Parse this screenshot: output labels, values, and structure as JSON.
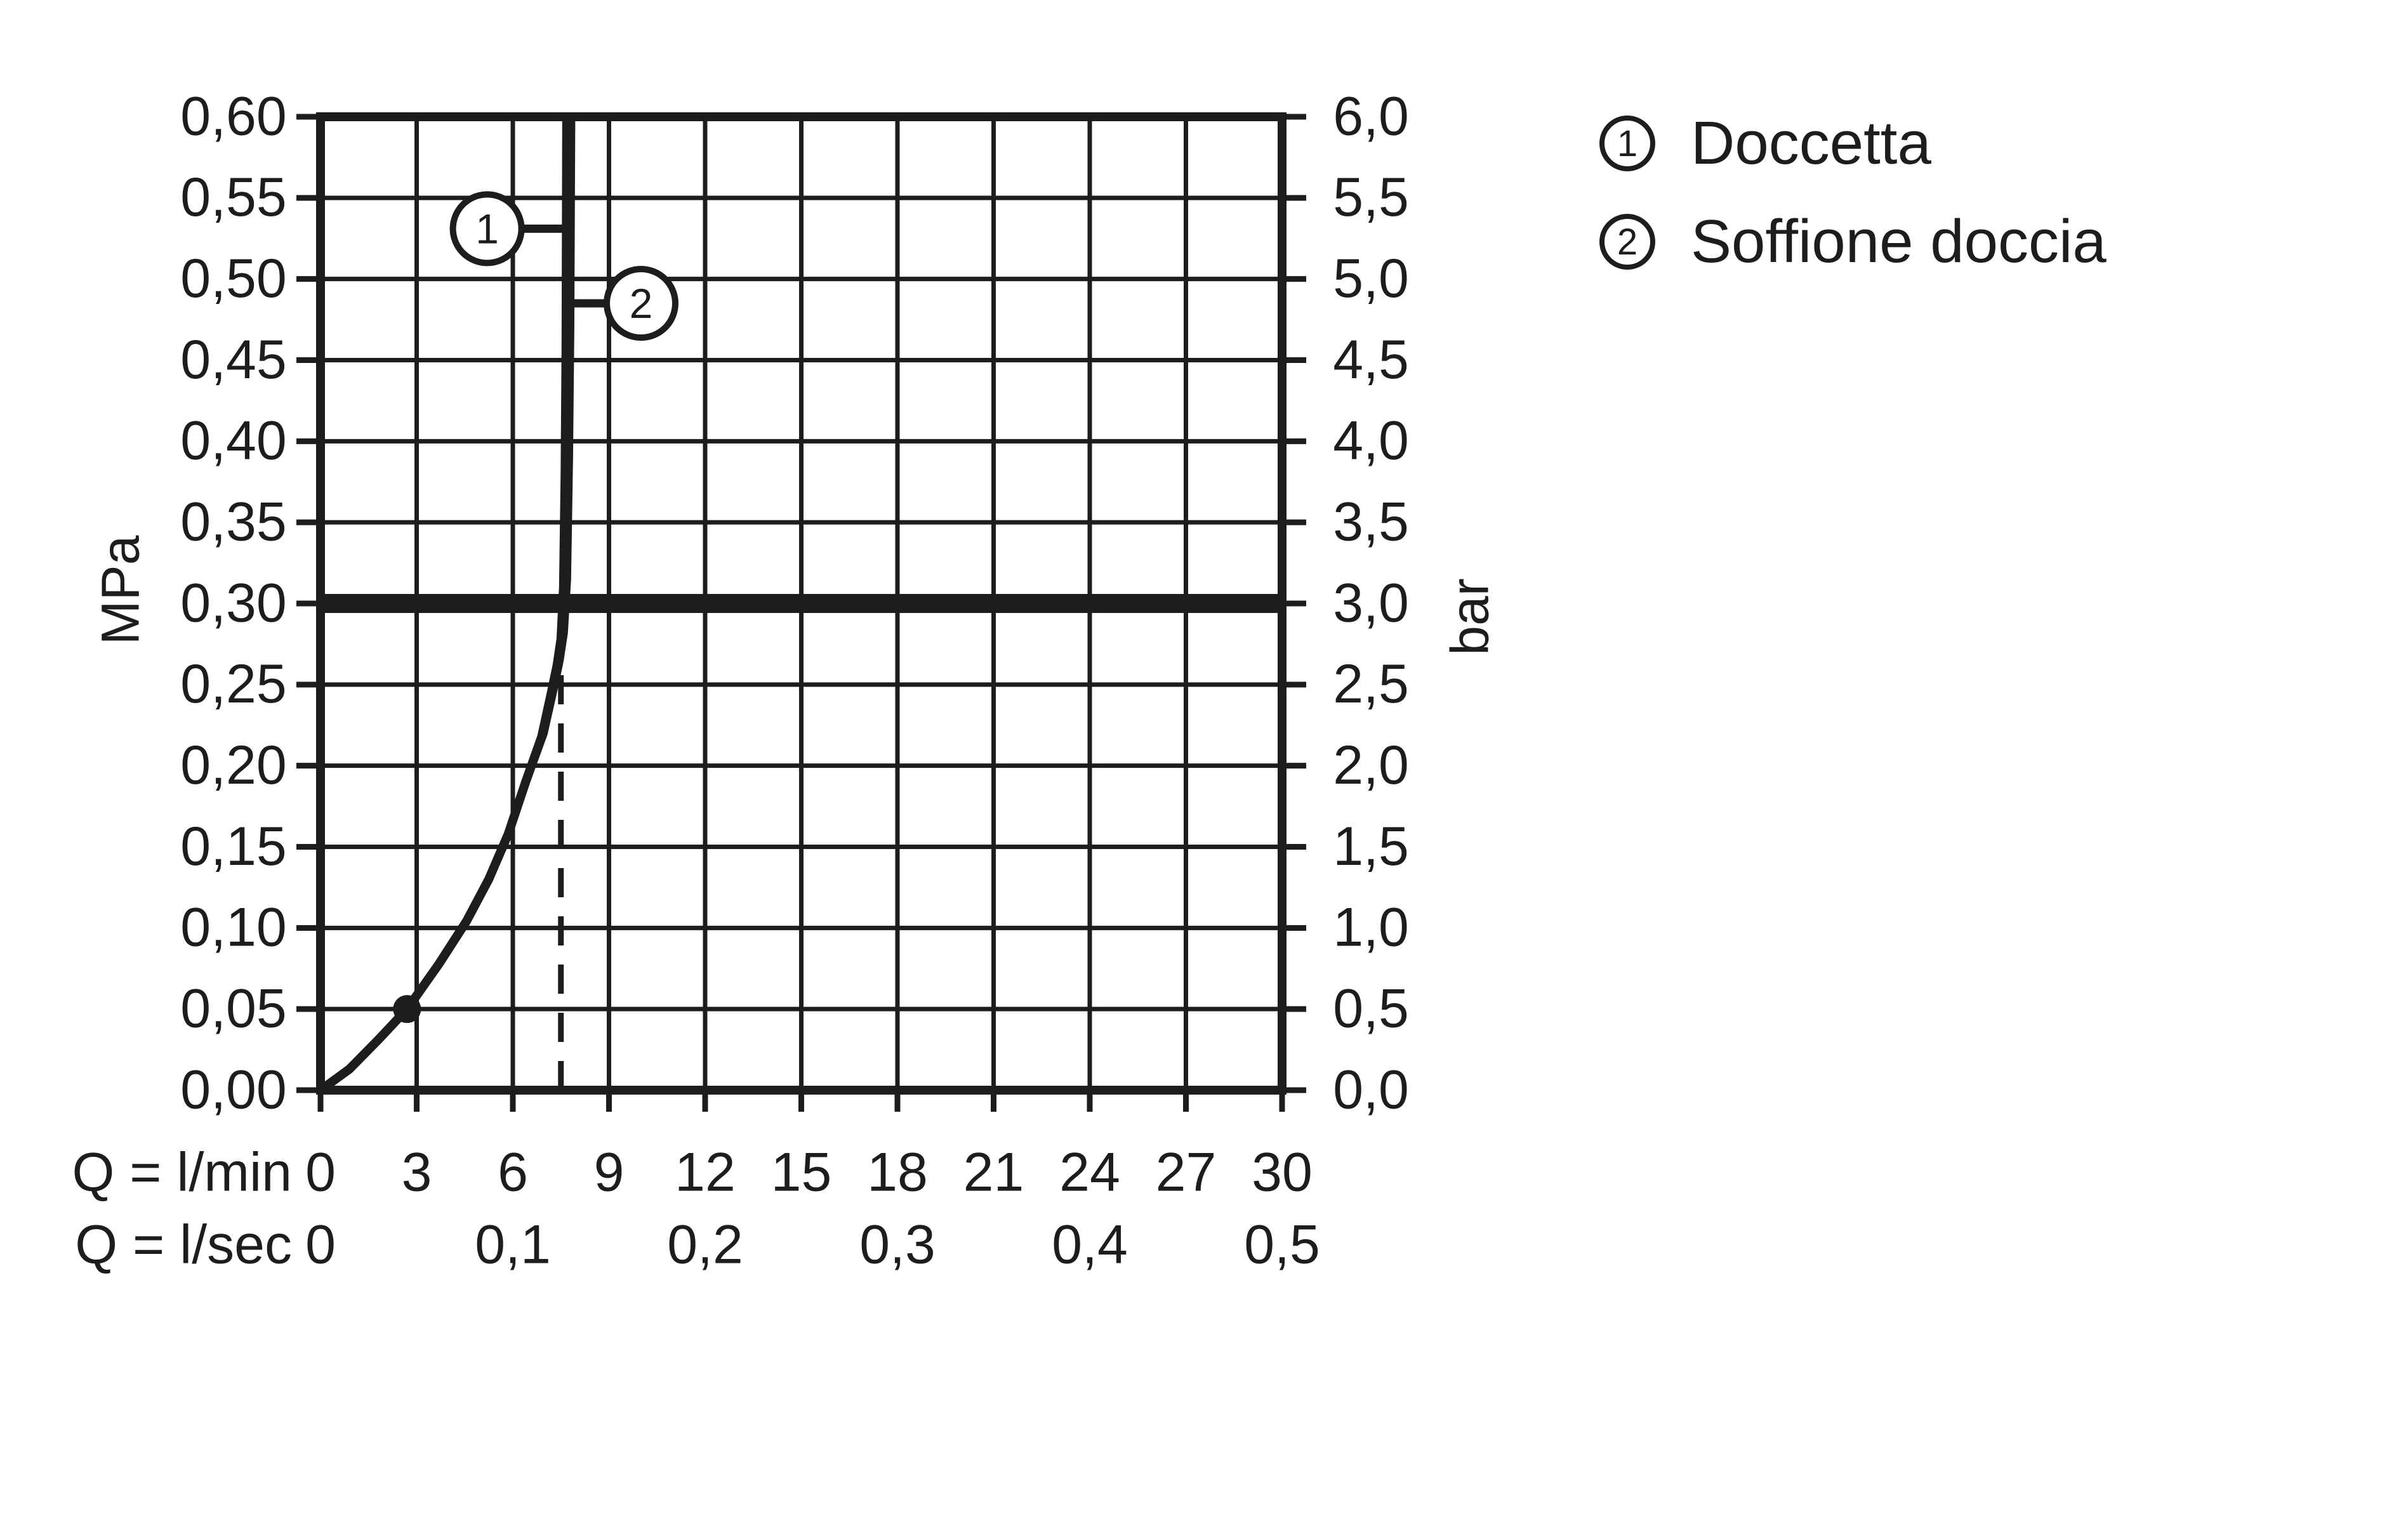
{
  "page": {
    "background": "#ffffff",
    "ink": "#1d1d1b"
  },
  "legend": {
    "items": [
      {
        "marker": "1",
        "label": "Doccetta"
      },
      {
        "marker": "2",
        "label": "Soffione doccia"
      }
    ]
  },
  "chart_data": {
    "type": "line",
    "grid": true,
    "x_axis": {
      "xlim": [
        0,
        30
      ],
      "row1_prefix": "Q = l/min",
      "row1_ticks": {
        "values": [
          0,
          3,
          6,
          9,
          12,
          15,
          18,
          21,
          24,
          27,
          30
        ],
        "labels": [
          "0",
          "3",
          "6",
          "9",
          "12",
          "15",
          "18",
          "21",
          "24",
          "27",
          "30"
        ]
      },
      "row2_prefix": "Q = l/sec",
      "row2_ticks": {
        "values": [
          0,
          6,
          12,
          18,
          24,
          30
        ],
        "labels": [
          "0",
          "0,1",
          "0,2",
          "0,3",
          "0,4",
          "0,5"
        ]
      }
    },
    "y_axis_left": {
      "unit": "MPa",
      "ylim": [
        0,
        0.6
      ],
      "ticks": {
        "values": [
          0,
          0.05,
          0.1,
          0.15,
          0.2,
          0.25,
          0.3,
          0.35,
          0.4,
          0.45,
          0.5,
          0.55,
          0.6
        ],
        "labels": [
          "0,00",
          "0,05",
          "0,10",
          "0,15",
          "0,20",
          "0,25",
          "0,30",
          "0,35",
          "0,40",
          "0,45",
          "0,50",
          "0,55",
          "0,60"
        ]
      }
    },
    "y_axis_right": {
      "unit": "bar",
      "labels": [
        "0,0",
        "0,5",
        "1,0",
        "1,5",
        "2,0",
        "2,5",
        "3,0",
        "3,5",
        "4,0",
        "4,5",
        "5,0",
        "5,5",
        "6,0"
      ]
    },
    "reference_lines": {
      "bold_horizontal_mpa": 0.3,
      "dashed_vertical_lmin": 7.5,
      "dashed_vertical_top_mpa": 0.27
    },
    "marker_point": {
      "lmin": 2.7,
      "mpa": 0.05
    },
    "series": [
      {
        "name": "Doccetta",
        "callout": "1",
        "points": [
          [
            0,
            0
          ],
          [
            0.9,
            0.013
          ],
          [
            1.8,
            0.031
          ],
          [
            2.7,
            0.05
          ],
          [
            3.7,
            0.078
          ],
          [
            4.55,
            0.104
          ],
          [
            5.25,
            0.13
          ],
          [
            5.86,
            0.158
          ],
          [
            6.4,
            0.19
          ],
          [
            6.9,
            0.218
          ],
          [
            7.2,
            0.245
          ],
          [
            7.38,
            0.262
          ],
          [
            7.5,
            0.278
          ],
          [
            7.58,
            0.31
          ],
          [
            7.63,
            0.38
          ],
          [
            7.66,
            0.46
          ],
          [
            7.68,
            0.6
          ]
        ]
      },
      {
        "name": "Soffione doccia",
        "callout": "2",
        "points": [
          [
            0,
            0
          ],
          [
            0.9,
            0.013
          ],
          [
            1.8,
            0.031
          ],
          [
            2.7,
            0.05
          ],
          [
            3.7,
            0.078
          ],
          [
            4.55,
            0.104
          ],
          [
            5.25,
            0.13
          ],
          [
            5.86,
            0.158
          ],
          [
            6.4,
            0.19
          ],
          [
            6.95,
            0.22
          ],
          [
            7.27,
            0.248
          ],
          [
            7.45,
            0.265
          ],
          [
            7.58,
            0.282
          ],
          [
            7.68,
            0.315
          ],
          [
            7.74,
            0.39
          ],
          [
            7.78,
            0.47
          ],
          [
            7.81,
            0.6
          ]
        ]
      }
    ],
    "callouts": [
      {
        "label": "1",
        "center_lmin": 5.2,
        "center_mpa": 0.531,
        "attach_lmin": 7.55,
        "side": "left"
      },
      {
        "label": "2",
        "center_lmin": 10.0,
        "center_mpa": 0.485,
        "attach_lmin": 7.75,
        "side": "right"
      }
    ]
  }
}
